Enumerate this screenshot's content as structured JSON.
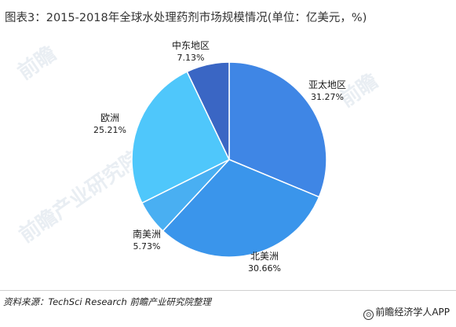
{
  "title": "图表3：2015-2018年全球水处理药剂市场规模情况(单位：亿美元，%)",
  "chart_data": {
    "type": "pie",
    "slices": [
      {
        "name": "亚太地区",
        "value": 31.27,
        "label": "31.27%",
        "color": "#3f86e5"
      },
      {
        "name": "北美洲",
        "value": 30.66,
        "label": "30.66%",
        "color": "#3a95eb"
      },
      {
        "name": "南美洲",
        "value": 5.73,
        "label": "5.73%",
        "color": "#49aff2"
      },
      {
        "name": "欧洲",
        "value": 25.21,
        "label": "25.21%",
        "color": "#4fc7fb"
      },
      {
        "name": "中东地区",
        "value": 7.13,
        "label": "7.13%",
        "color": "#3a66c4"
      }
    ]
  },
  "footer": {
    "source": "资料来源：TechSci Research 前瞻产业研究院整理",
    "brand_icon": "qianzhan-logo-icon",
    "brand": "前瞻经济学人APP"
  }
}
